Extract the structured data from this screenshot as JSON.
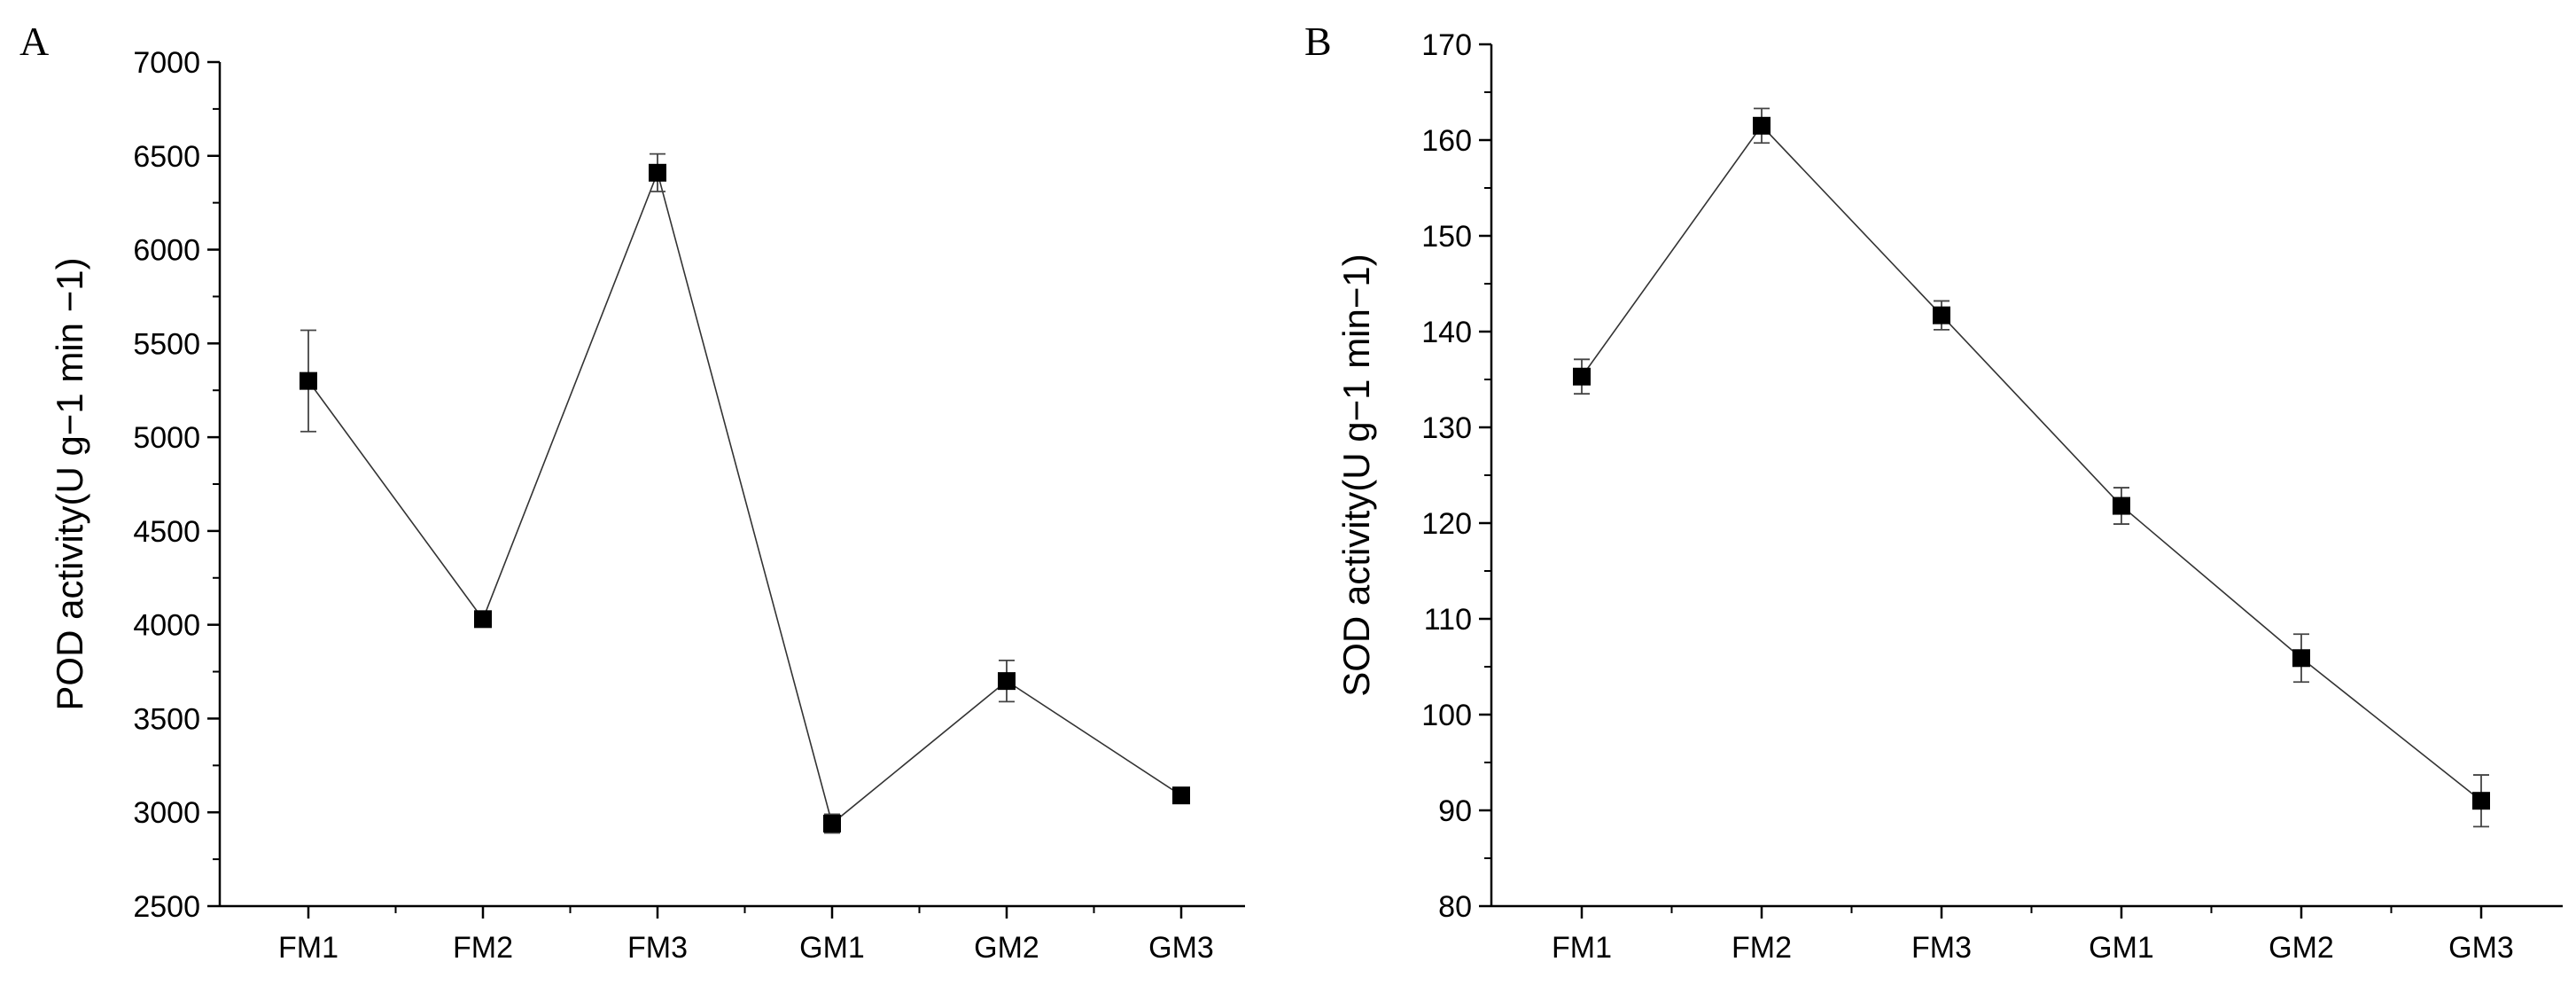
{
  "chart_data": [
    {
      "panel": "A",
      "type": "line",
      "title": "",
      "xlabel": "",
      "ylabel": "POD activity(U g−1 min −1)",
      "categories": [
        "FM1",
        "FM2",
        "FM3",
        "GM1",
        "GM2",
        "GM3"
      ],
      "series": [
        {
          "name": "POD activity",
          "values": [
            5300,
            4030,
            6410,
            2940,
            3700,
            3090
          ],
          "errors": [
            270,
            40,
            100,
            50,
            110,
            40
          ]
        }
      ],
      "ylim": [
        2500,
        7000
      ],
      "yticks": [
        2500,
        3000,
        3500,
        4000,
        4500,
        5000,
        5500,
        6000,
        6500,
        7000
      ],
      "grid": false
    },
    {
      "panel": "B",
      "type": "line",
      "title": "",
      "xlabel": "",
      "ylabel": "SOD activity(U g−1 min−1)",
      "categories": [
        "FM1",
        "FM2",
        "FM3",
        "GM1",
        "GM2",
        "GM3"
      ],
      "series": [
        {
          "name": "SOD activity",
          "values": [
            135.3,
            161.5,
            141.7,
            121.8,
            105.9,
            91.0
          ],
          "errors": [
            1.8,
            1.8,
            1.5,
            1.9,
            2.5,
            2.7
          ]
        }
      ],
      "ylim": [
        80,
        170
      ],
      "yticks": [
        80,
        90,
        100,
        110,
        120,
        130,
        140,
        150,
        160,
        170
      ],
      "grid": false
    }
  ]
}
